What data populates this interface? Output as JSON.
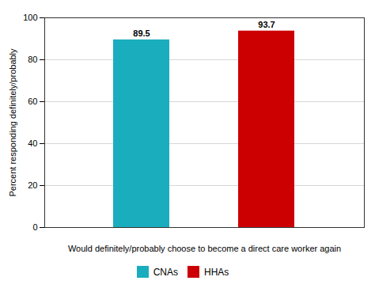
{
  "chart_data": {
    "type": "bar",
    "categories": [
      "CNAs",
      "HHAs"
    ],
    "values": [
      89.5,
      93.7
    ],
    "colors": [
      "#1AADBE",
      "#CC0000"
    ],
    "xlabel": "Would definitely/probably choose to become a direct care worker again",
    "ylabel": "Percent responding definitely/probably",
    "ylim": [
      0,
      100
    ],
    "yticks": [
      0,
      20,
      40,
      60,
      80,
      100
    ],
    "data_labels": true,
    "grid": true,
    "legend": "bottom",
    "tick_labels": "y"
  }
}
